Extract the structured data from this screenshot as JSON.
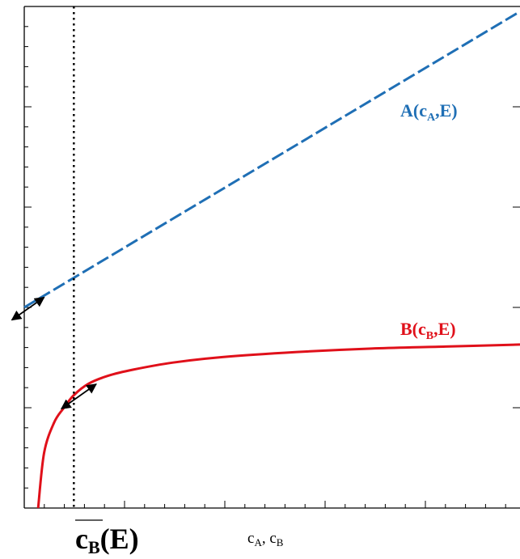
{
  "chart_data": {
    "type": "line",
    "xlabel": {
      "main_a": "c",
      "sub_a": "A",
      "sep": ", ",
      "main_b": "c",
      "sub_b": "B"
    },
    "marker_label": {
      "main": "c",
      "sub": "B",
      "tail": "(E)"
    },
    "marker_x": 0.1,
    "xlim": [
      0,
      1
    ],
    "ylim": [
      0,
      1
    ],
    "grid": false,
    "series": [
      {
        "name": "A(c_A,E)",
        "label": {
          "prefix": "A(c",
          "sub": "A",
          "suffix": ",E)"
        },
        "color": "#1f6fb5",
        "style": "dashed",
        "x": [
          0.0,
          1.0
        ],
        "y": [
          0.4,
          0.99
        ]
      },
      {
        "name": "B(c_B,E)",
        "label": {
          "prefix": "B(c",
          "sub": "B",
          "suffix": ",E)"
        },
        "color": "#e0101a",
        "style": "solid",
        "x": [
          0.028,
          0.04,
          0.06,
          0.08,
          0.1,
          0.13,
          0.17,
          0.22,
          0.3,
          0.4,
          0.55,
          0.7,
          0.85,
          1.0
        ],
        "y": [
          0.0,
          0.11,
          0.17,
          0.2,
          0.225,
          0.248,
          0.264,
          0.276,
          0.29,
          0.301,
          0.311,
          0.318,
          0.322,
          0.326
        ]
      }
    ],
    "annotations": [
      {
        "kind": "double-arrow",
        "x1": -0.025,
        "y1": 0.375,
        "x2": 0.04,
        "y2": 0.42
      },
      {
        "kind": "double-arrow",
        "x1": 0.075,
        "y1": 0.198,
        "x2": 0.145,
        "y2": 0.247
      }
    ]
  },
  "colors": {
    "axis": "#000000",
    "marker": "#000000",
    "arrow": "#000000"
  }
}
